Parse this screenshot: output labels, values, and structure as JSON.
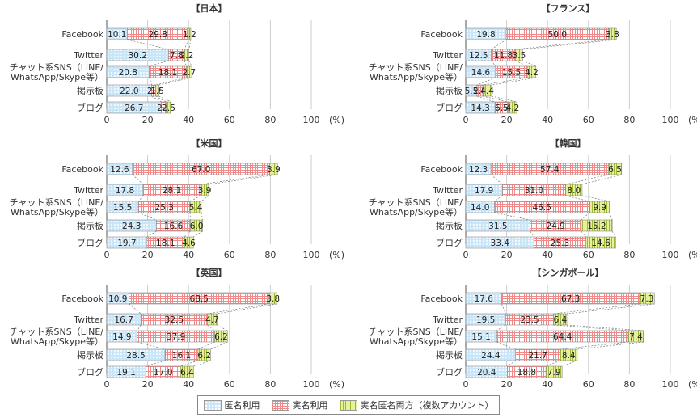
{
  "categories": [
    "Facebook",
    "Twitter",
    "チャット系SNS（LINE/WhatsApp/Skype等）",
    "掲示板",
    "ブログ"
  ],
  "category_display": [
    [
      "Facebook"
    ],
    [
      "Twitter"
    ],
    [
      "チャット系SNS（LINE/",
      "WhatsApp/Skype等）"
    ],
    [
      "掲示板"
    ],
    [
      "ブログ"
    ]
  ],
  "axis": {
    "ticks": [
      "0",
      "20",
      "40",
      "60",
      "80",
      "100"
    ],
    "unit": "(%)",
    "max": 100
  },
  "legend": {
    "anon": "匿名利用",
    "real": "実名利用",
    "both": "実名匿名両方（複数アカウント）"
  },
  "colors": {
    "anon": "#c9e5f8",
    "real": "#f6b8b8",
    "both": "#e7f09a",
    "grid": "#cccccc"
  },
  "chart_data": [
    {
      "type": "bar",
      "title": "【日本】",
      "categories": [
        "Facebook",
        "Twitter",
        "チャット系SNS（LINE/WhatsApp/Skype等）",
        "掲示板",
        "ブログ"
      ],
      "series": [
        {
          "name": "匿名利用",
          "values": [
            10.1,
            30.2,
            20.8,
            22.0,
            26.7
          ]
        },
        {
          "name": "実名利用",
          "values": [
            29.8,
            7.8,
            18.1,
            2.0,
            2.3
          ]
        },
        {
          "name": "実名匿名両方（複数アカウント）",
          "values": [
            1.2,
            2.2,
            2.7,
            1.5,
            2.5
          ]
        }
      ]
    },
    {
      "type": "bar",
      "title": "【フランス】",
      "categories": [
        "Facebook",
        "Twitter",
        "チャット系SNS（LINE/WhatsApp/Skype等）",
        "掲示板",
        "ブログ"
      ],
      "series": [
        {
          "name": "匿名利用",
          "values": [
            19.8,
            12.5,
            14.6,
            5.5,
            14.3
          ]
        },
        {
          "name": "実名利用",
          "values": [
            50.0,
            11.8,
            15.5,
            2.8,
            6.5
          ]
        },
        {
          "name": "実名匿名両方（複数アカウント）",
          "values": [
            3.8,
            3.5,
            4.2,
            4.4,
            4.2
          ]
        }
      ]
    },
    {
      "type": "bar",
      "title": "【米国】",
      "categories": [
        "Facebook",
        "Twitter",
        "チャット系SNS（LINE/WhatsApp/Skype等）",
        "掲示板",
        "ブログ"
      ],
      "series": [
        {
          "name": "匿名利用",
          "values": [
            12.6,
            17.8,
            15.5,
            24.3,
            19.7
          ]
        },
        {
          "name": "実名利用",
          "values": [
            67.0,
            28.1,
            25.3,
            16.6,
            18.1
          ]
        },
        {
          "name": "実名匿名両方（複数アカウント）",
          "values": [
            3.9,
            3.9,
            5.4,
            6.0,
            4.6
          ]
        }
      ]
    },
    {
      "type": "bar",
      "title": "【韓国】",
      "categories": [
        "Facebook",
        "Twitter",
        "チャット系SNS（LINE/WhatsApp/Skype等）",
        "掲示板",
        "ブログ"
      ],
      "series": [
        {
          "name": "匿名利用",
          "values": [
            12.3,
            17.9,
            14.0,
            31.5,
            33.4
          ]
        },
        {
          "name": "実名利用",
          "values": [
            57.4,
            31.0,
            46.5,
            24.9,
            25.3
          ]
        },
        {
          "name": "実名匿名両方（複数アカウント）",
          "values": [
            6.5,
            8.0,
            9.9,
            15.2,
            14.6
          ]
        }
      ]
    },
    {
      "type": "bar",
      "title": "【英国】",
      "categories": [
        "Facebook",
        "Twitter",
        "チャット系SNS（LINE/WhatsApp/Skype等）",
        "掲示板",
        "ブログ"
      ],
      "series": [
        {
          "name": "匿名利用",
          "values": [
            10.9,
            16.7,
            14.9,
            28.5,
            19.1
          ]
        },
        {
          "name": "実名利用",
          "values": [
            68.5,
            32.5,
            37.9,
            16.1,
            17.0
          ]
        },
        {
          "name": "実名匿名両方（複数アカウント）",
          "values": [
            3.8,
            4.7,
            6.2,
            6.2,
            6.4
          ]
        }
      ]
    },
    {
      "type": "bar",
      "title": "【シンガポール】",
      "categories": [
        "Facebook",
        "Twitter",
        "チャット系SNS（LINE/WhatsApp/Skype等）",
        "掲示板",
        "ブログ"
      ],
      "series": [
        {
          "name": "匿名利用",
          "values": [
            17.6,
            19.5,
            15.1,
            24.4,
            20.4
          ]
        },
        {
          "name": "実名利用",
          "values": [
            67.3,
            23.5,
            64.4,
            21.7,
            18.8
          ]
        },
        {
          "name": "実名匿名両方（複数アカウント）",
          "values": [
            7.3,
            6.4,
            7.4,
            8.4,
            7.9
          ]
        }
      ]
    }
  ]
}
